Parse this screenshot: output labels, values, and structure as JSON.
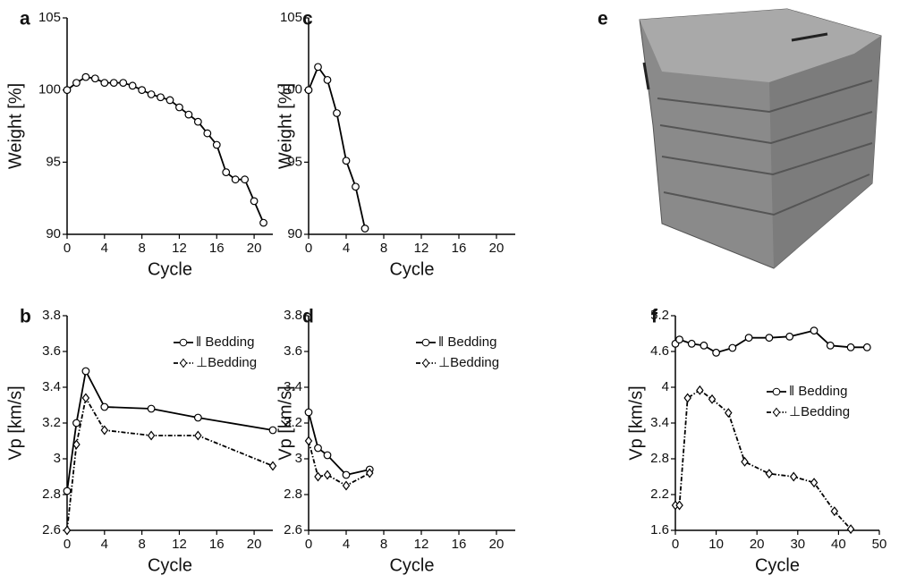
{
  "chart_data": [
    {
      "type": "line",
      "panel": "a",
      "xlabel": "Cycle",
      "ylabel": "Weight [%]",
      "xlim": [
        0,
        22
      ],
      "ylim": [
        90,
        105
      ],
      "xticks": [
        0,
        4,
        8,
        12,
        16,
        20
      ],
      "yticks": [
        90,
        95,
        100,
        105
      ],
      "series": [
        {
          "color": "#000000",
          "marker": "circle",
          "dash": "solid",
          "x": [
            0,
            1,
            2,
            3,
            4,
            5,
            6,
            7,
            8,
            9,
            10,
            11,
            12,
            13,
            14,
            15,
            16,
            17,
            18,
            19,
            20,
            21
          ],
          "values": [
            100,
            100.5,
            100.9,
            100.8,
            100.5,
            100.5,
            100.5,
            100.3,
            100,
            99.7,
            99.5,
            99.3,
            98.8,
            98.3,
            97.8,
            97.0,
            96.2,
            94.3,
            93.8,
            93.8,
            92.3,
            90.8
          ]
        }
      ]
    },
    {
      "type": "line",
      "panel": "b",
      "xlabel": "Cycle",
      "ylabel": "Vp [km/s]",
      "xlim": [
        0,
        22
      ],
      "ylim": [
        2.6,
        3.8
      ],
      "xticks": [
        0,
        4,
        8,
        12,
        16,
        20
      ],
      "yticks": [
        2.6,
        2.8,
        3.0,
        3.2,
        3.4,
        3.6,
        3.8
      ],
      "legend": "upper right",
      "series": [
        {
          "name": "ǁ Bedding",
          "color": "#000000",
          "marker": "circle",
          "dash": "solid",
          "x": [
            0,
            1,
            2,
            4,
            9,
            14,
            22
          ],
          "values": [
            2.82,
            3.2,
            3.49,
            3.29,
            3.28,
            3.23,
            3.16
          ]
        },
        {
          "name": "⊥Bedding",
          "color": "#000000",
          "marker": "diamond",
          "dash": "dashdot",
          "x": [
            0,
            1,
            2,
            4,
            9,
            14,
            22
          ],
          "values": [
            2.6,
            3.08,
            3.34,
            3.16,
            3.13,
            3.13,
            2.96
          ]
        }
      ]
    },
    {
      "type": "line",
      "panel": "c",
      "xlabel": "Cycle",
      "ylabel": "Weight [%]",
      "xlim": [
        0,
        22
      ],
      "ylim": [
        90,
        105
      ],
      "xticks": [
        0,
        4,
        8,
        12,
        16,
        20
      ],
      "yticks": [
        90,
        95,
        100,
        105
      ],
      "series": [
        {
          "color": "#000000",
          "marker": "circle",
          "dash": "solid",
          "x": [
            0,
            1,
            2,
            3,
            4,
            5,
            6
          ],
          "values": [
            100,
            101.6,
            100.7,
            98.4,
            95.1,
            93.3,
            90.4
          ]
        }
      ]
    },
    {
      "type": "line",
      "panel": "d",
      "xlabel": "Cycle",
      "ylabel": "Vp [km/s]",
      "xlim": [
        0,
        22
      ],
      "ylim": [
        2.6,
        3.8
      ],
      "xticks": [
        0,
        4,
        8,
        12,
        16,
        20
      ],
      "yticks": [
        2.6,
        2.8,
        3.0,
        3.2,
        3.4,
        3.6,
        3.8
      ],
      "legend": "upper right",
      "series": [
        {
          "name": "ǁ Bedding",
          "color": "#000000",
          "marker": "circle",
          "dash": "solid",
          "x": [
            0,
            1,
            2,
            4,
            6.5
          ],
          "values": [
            3.26,
            3.06,
            3.02,
            2.91,
            2.94
          ]
        },
        {
          "name": "⊥Bedding",
          "color": "#000000",
          "marker": "diamond",
          "dash": "dashdot",
          "x": [
            0,
            1,
            2,
            4,
            6.5
          ],
          "values": [
            3.1,
            2.9,
            2.91,
            2.85,
            2.92
          ]
        }
      ]
    },
    {
      "type": "line",
      "panel": "f",
      "xlabel": "Cycle",
      "ylabel": "Vp [km/s]",
      "xlim": [
        0,
        50
      ],
      "ylim": [
        1.6,
        5.2
      ],
      "xticks": [
        0,
        10,
        20,
        30,
        40,
        50
      ],
      "yticks": [
        1.6,
        2.2,
        2.8,
        3.4,
        4.0,
        4.6,
        5.2
      ],
      "legend": "center right",
      "series": [
        {
          "name": "ǁ Bedding",
          "color": "#000000",
          "marker": "circle",
          "dash": "solid",
          "x": [
            0,
            1,
            4,
            7,
            10,
            14,
            18,
            23,
            28,
            34,
            38,
            43,
            47
          ],
          "values": [
            4.73,
            4.8,
            4.73,
            4.7,
            4.58,
            4.66,
            4.83,
            4.83,
            4.85,
            4.95,
            4.7,
            4.67,
            4.67
          ]
        },
        {
          "name": "⊥Bedding",
          "color": "#000000",
          "marker": "diamond",
          "dash": "dashdot",
          "x": [
            0,
            1,
            3,
            6,
            9,
            13,
            17,
            23,
            29,
            34,
            39,
            43
          ],
          "values": [
            2.02,
            2.02,
            3.82,
            3.95,
            3.8,
            3.57,
            2.75,
            2.55,
            2.5,
            2.4,
            1.92,
            1.62
          ]
        }
      ]
    }
  ],
  "photo_panel": "e"
}
